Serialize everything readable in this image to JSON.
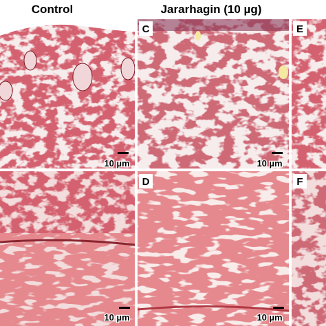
{
  "headers": [
    "Control",
    "Jararhagin (10 µg)"
  ],
  "panels": [
    {
      "scale_bar": "10 µm"
    },
    {
      "label": "C",
      "scale_bar": "10 µm"
    },
    {
      "label": "E"
    },
    {
      "scale_bar": "10 µm"
    },
    {
      "label": "D",
      "scale_bar": "10 µm"
    },
    {
      "label": "F"
    }
  ]
}
